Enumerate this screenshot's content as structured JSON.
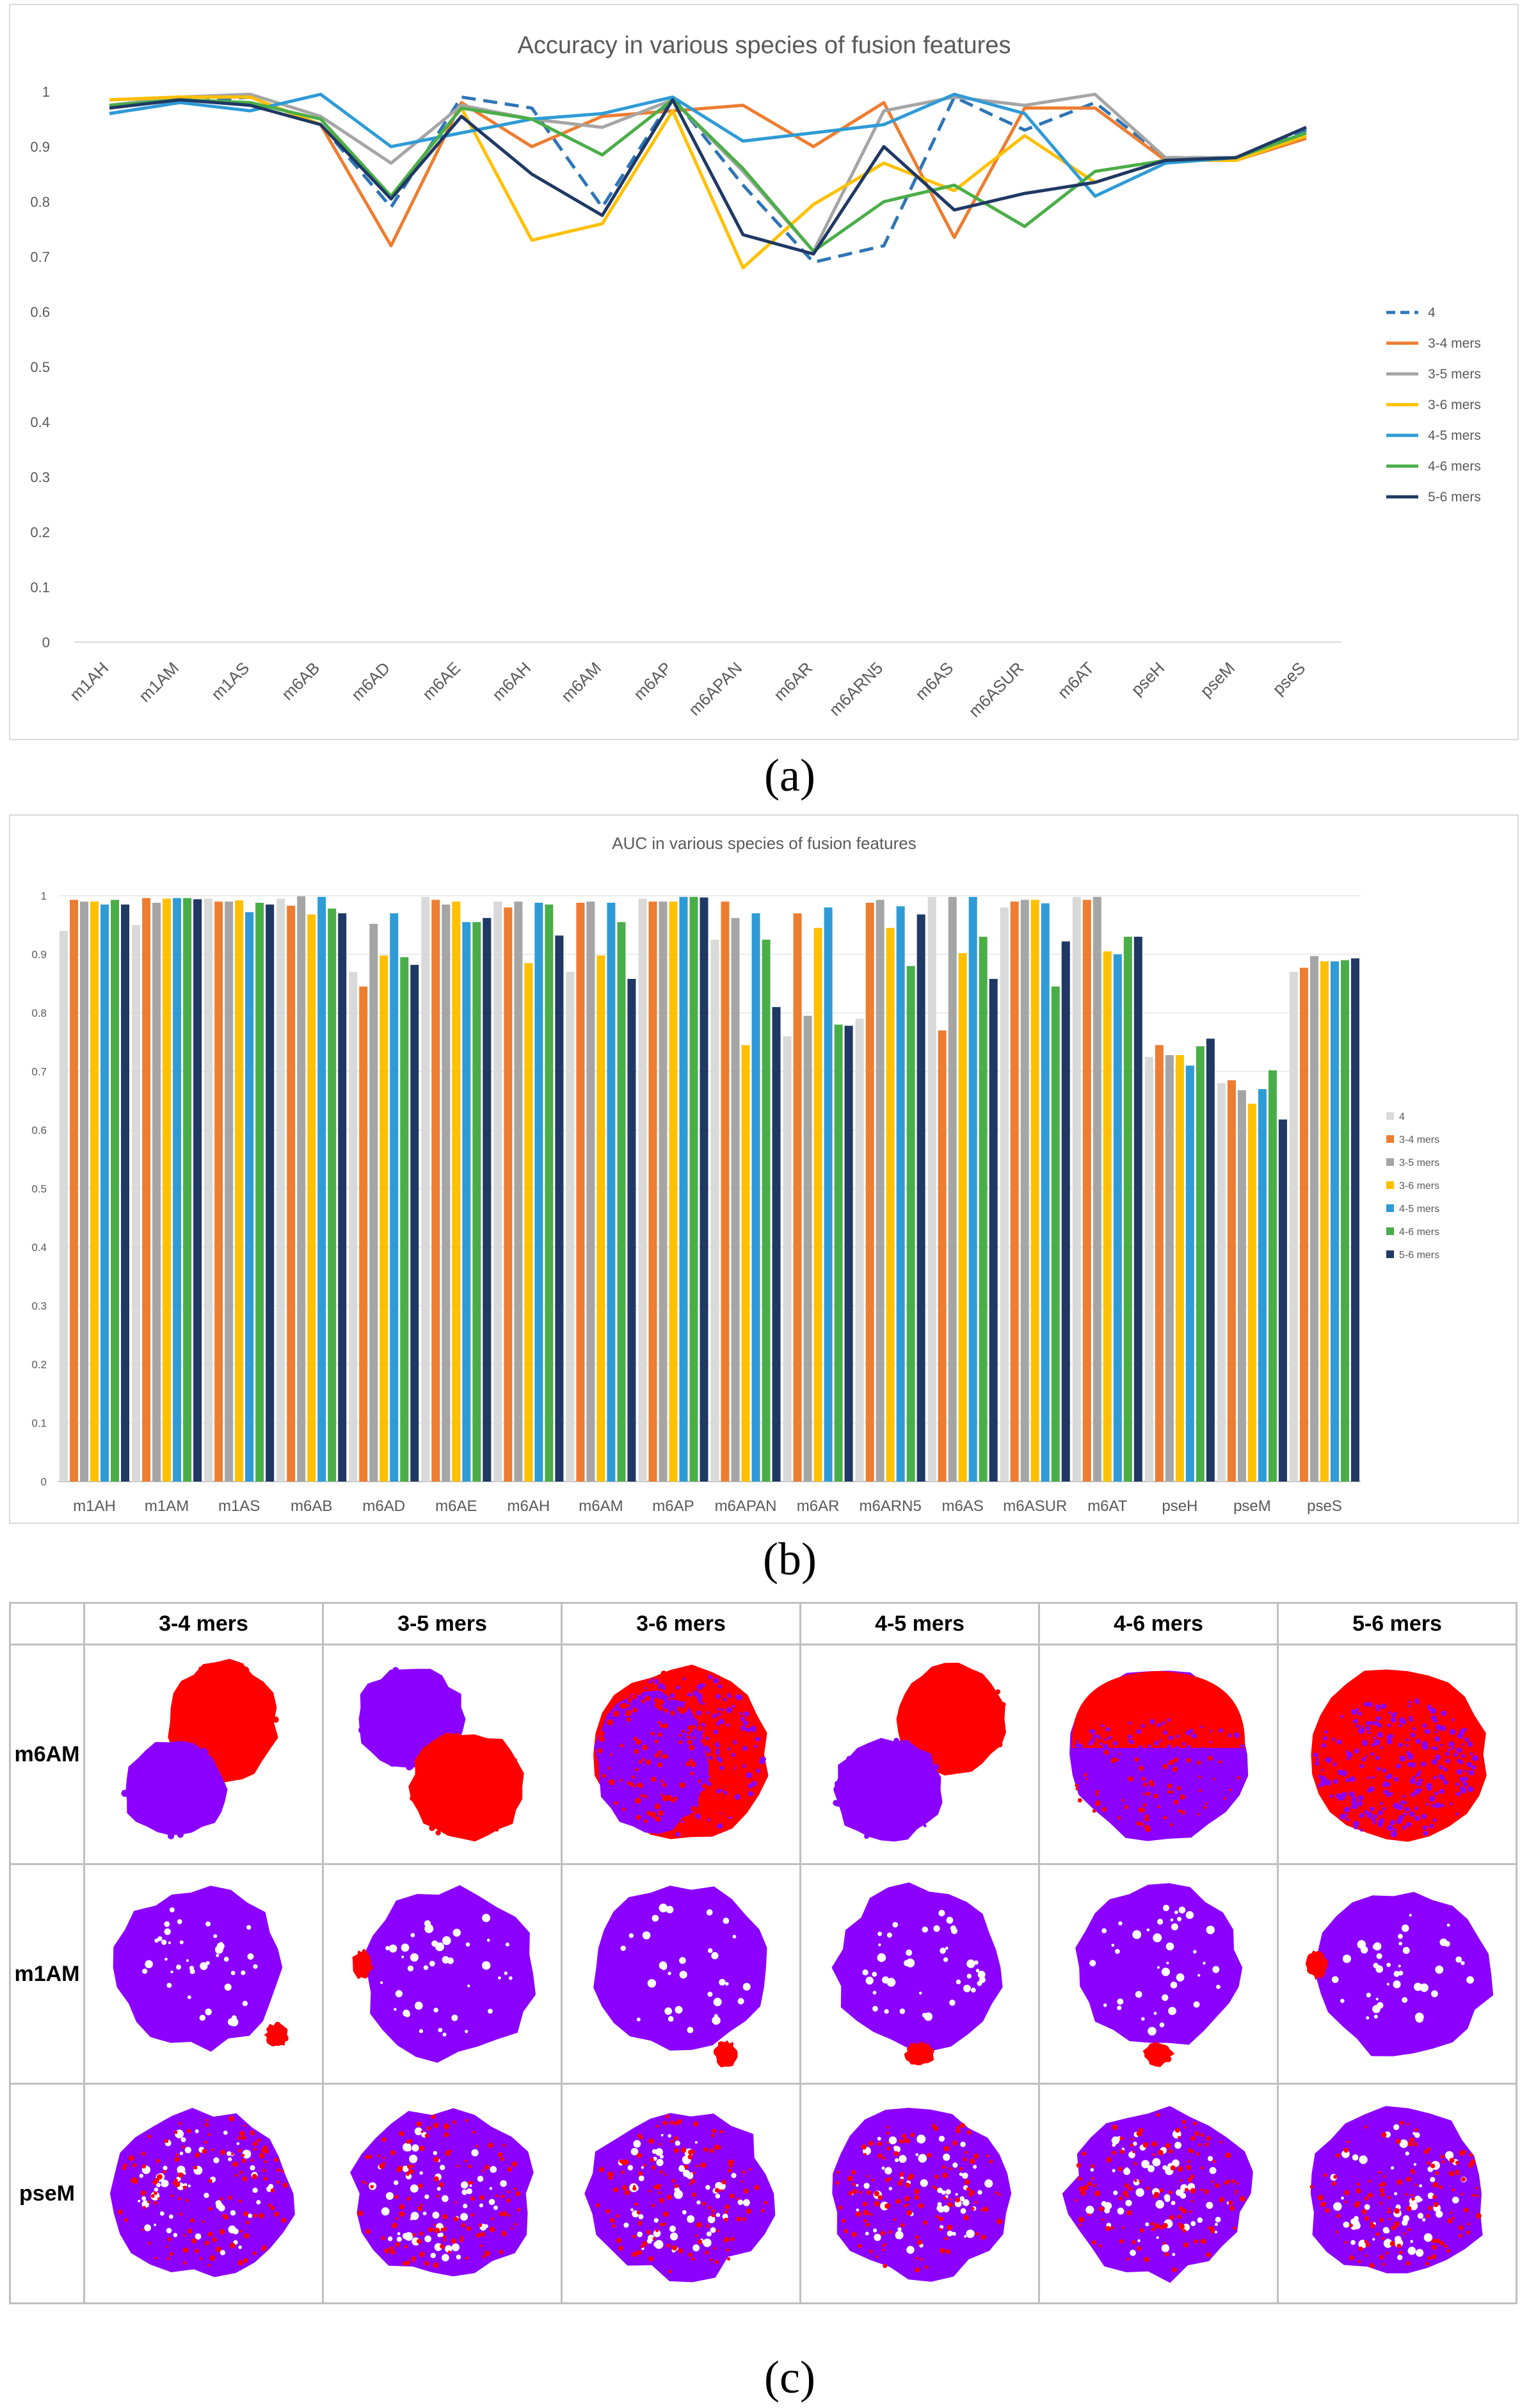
{
  "panels": {
    "a": "(a)",
    "b": "(b)",
    "c": "(c)"
  },
  "colors": {
    "4": "#2e75b6",
    "3-4 mers": "#ed7d31",
    "3-5 mers": "#a5a5a5",
    "3-6 mers": "#ffc000",
    "4-5 mers": "#2e9bd6",
    "4-6 mers": "#4aae48",
    "5-6 mers": "#1f3864",
    "auc_4": "#d9d9d9",
    "class_pos": "#ff0000",
    "class_neg": "#8b00ff"
  },
  "chart_data": [
    {
      "type": "line",
      "title": "Accuracy in various species of fusion features",
      "xlabel": "",
      "ylabel": "",
      "ylim": [
        0,
        1
      ],
      "yticks": [
        "0",
        "0.1",
        "0.2",
        "0.3",
        "0.4",
        "0.5",
        "0.6",
        "0.7",
        "0.8",
        "0.9",
        "1"
      ],
      "grid": false,
      "legend_position": "right",
      "categories": [
        "m1AH",
        "m1AM",
        "m1AS",
        "m6AB",
        "m6AD",
        "m6AE",
        "m6AH",
        "m6AM",
        "m6AP",
        "m6APAN",
        "m6AR",
        "m6ARN5",
        "m6AS",
        "m6ASUR",
        "m6AT",
        "pseH",
        "pseM",
        "pseS"
      ],
      "series": [
        {
          "name": "4",
          "style": "dashed",
          "values": [
            0.96,
            0.98,
            0.99,
            0.94,
            0.79,
            0.99,
            0.97,
            0.79,
            0.99,
            0.83,
            0.69,
            0.72,
            0.99,
            0.93,
            0.98,
            0.88,
            0.88,
            0.93
          ]
        },
        {
          "name": "3-4 mers",
          "style": "solid",
          "values": [
            0.985,
            0.99,
            0.99,
            0.94,
            0.72,
            0.98,
            0.9,
            0.955,
            0.965,
            0.975,
            0.9,
            0.98,
            0.735,
            0.97,
            0.97,
            0.875,
            0.875,
            0.915
          ]
        },
        {
          "name": "3-5 mers",
          "style": "solid",
          "values": [
            0.975,
            0.99,
            0.995,
            0.955,
            0.87,
            0.975,
            0.95,
            0.935,
            0.985,
            0.855,
            0.71,
            0.965,
            0.99,
            0.975,
            0.995,
            0.88,
            0.88,
            0.935
          ]
        },
        {
          "name": "3-6 mers",
          "style": "solid",
          "values": [
            0.985,
            0.99,
            0.99,
            0.94,
            0.81,
            0.97,
            0.73,
            0.76,
            0.965,
            0.68,
            0.795,
            0.87,
            0.82,
            0.92,
            0.835,
            0.875,
            0.875,
            0.92
          ]
        },
        {
          "name": "4-5 mers",
          "style": "solid",
          "values": [
            0.96,
            0.98,
            0.965,
            0.995,
            0.9,
            0.925,
            0.95,
            0.96,
            0.99,
            0.91,
            0.925,
            0.94,
            0.995,
            0.96,
            0.81,
            0.87,
            0.88,
            0.925
          ]
        },
        {
          "name": "4-6 mers",
          "style": "solid",
          "values": [
            0.975,
            0.985,
            0.98,
            0.95,
            0.81,
            0.97,
            0.95,
            0.885,
            0.985,
            0.86,
            0.71,
            0.8,
            0.83,
            0.755,
            0.855,
            0.875,
            0.88,
            0.925
          ]
        },
        {
          "name": "5-6 mers",
          "style": "solid",
          "values": [
            0.97,
            0.985,
            0.975,
            0.94,
            0.805,
            0.955,
            0.85,
            0.775,
            0.985,
            0.74,
            0.705,
            0.9,
            0.785,
            0.815,
            0.835,
            0.875,
            0.88,
            0.935
          ]
        }
      ]
    },
    {
      "type": "bar",
      "title": "AUC in various species of fusion features",
      "xlabel": "",
      "ylabel": "",
      "ylim": [
        0,
        1
      ],
      "yticks": [
        "0",
        "0.1",
        "0.2",
        "0.3",
        "0.4",
        "0.5",
        "0.6",
        "0.7",
        "0.8",
        "0.9",
        "1"
      ],
      "grid": true,
      "legend_position": "right",
      "categories": [
        "m1AH",
        "m1AM",
        "m1AS",
        "m6AB",
        "m6AD",
        "m6AE",
        "m6AH",
        "m6AM",
        "m6AP",
        "m6APAN",
        "m6AR",
        "m6ARN5",
        "m6AS",
        "m6ASUR",
        "m6AT",
        "pseH",
        "pseM",
        "pseS"
      ],
      "series": [
        {
          "name": "4",
          "values": [
            0.94,
            0.95,
            0.995,
            0.995,
            0.87,
            0.998,
            0.99,
            0.87,
            0.995,
            0.925,
            0.76,
            0.79,
            0.998,
            0.98,
            0.998,
            0.725,
            0.68,
            0.87
          ]
        },
        {
          "name": "3-4 mers",
          "values": [
            0.993,
            0.996,
            0.99,
            0.983,
            0.845,
            0.993,
            0.98,
            0.988,
            0.99,
            0.99,
            0.97,
            0.988,
            0.77,
            0.99,
            0.993,
            0.745,
            0.685,
            0.877
          ]
        },
        {
          "name": "3-5 mers",
          "values": [
            0.99,
            0.988,
            0.99,
            0.999,
            0.952,
            0.985,
            0.99,
            0.99,
            0.99,
            0.962,
            0.795,
            0.993,
            0.998,
            0.993,
            0.998,
            0.728,
            0.668,
            0.897
          ]
        },
        {
          "name": "3-6 mers",
          "values": [
            0.99,
            0.995,
            0.992,
            0.968,
            0.898,
            0.99,
            0.885,
            0.898,
            0.99,
            0.745,
            0.945,
            0.945,
            0.902,
            0.993,
            0.905,
            0.728,
            0.645,
            0.888
          ]
        },
        {
          "name": "4-5 mers",
          "values": [
            0.985,
            0.996,
            0.972,
            0.998,
            0.97,
            0.955,
            0.988,
            0.988,
            0.998,
            0.97,
            0.98,
            0.982,
            0.998,
            0.987,
            0.9,
            0.71,
            0.67,
            0.888
          ]
        },
        {
          "name": "4-6 mers",
          "values": [
            0.993,
            0.996,
            0.988,
            0.978,
            0.895,
            0.955,
            0.985,
            0.955,
            0.998,
            0.925,
            0.78,
            0.88,
            0.93,
            0.845,
            0.93,
            0.743,
            0.702,
            0.89
          ]
        },
        {
          "name": "5-6 mers",
          "values": [
            0.985,
            0.994,
            0.985,
            0.97,
            0.882,
            0.962,
            0.932,
            0.858,
            0.997,
            0.81,
            0.778,
            0.968,
            0.858,
            0.922,
            0.93,
            0.756,
            0.618,
            0.893
          ]
        }
      ]
    }
  ],
  "tsne": {
    "columns": [
      "3-4 mers",
      "3-5 mers",
      "3-6 mers",
      "4-5 mers",
      "4-6 mers",
      "5-6 mers"
    ],
    "rows": [
      {
        "label": "m6AM",
        "patterns": [
          "split_nw",
          "split_se",
          "mixed_left",
          "split_ne",
          "top_red",
          "mostly_red"
        ]
      },
      {
        "label": "m1AM",
        "patterns": [
          "blob_sr_br",
          "blob_sr_l",
          "blob_sr_bc",
          "blob_sr_b",
          "blob_sr_b",
          "blob_sr_l"
        ]
      },
      {
        "label": "pseM",
        "patterns": [
          "speckle",
          "speckle",
          "speckle",
          "speckle",
          "speckle",
          "speckle"
        ]
      }
    ]
  }
}
